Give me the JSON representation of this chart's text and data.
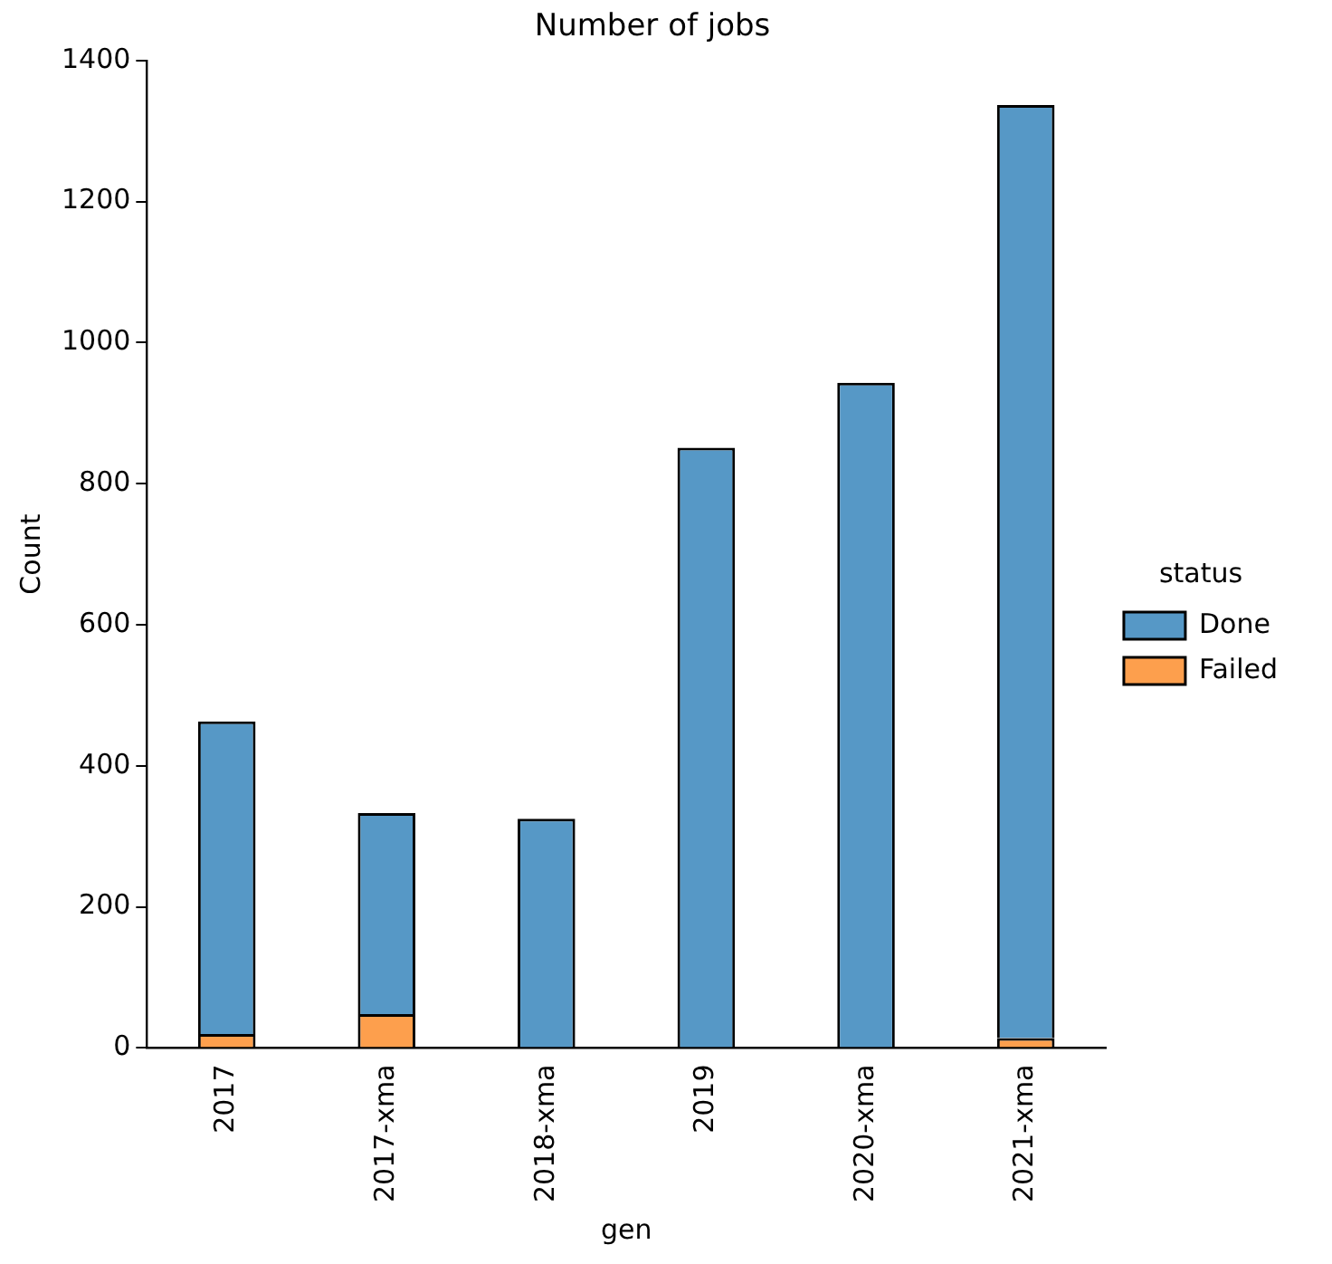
{
  "chart_data": {
    "type": "bar",
    "title": "Number of jobs",
    "xlabel": "gen",
    "ylabel": "Count",
    "legend_title": "status",
    "categories": [
      "2017",
      "2017-xma",
      "2018-xma",
      "2019",
      "2020-xma",
      "2021-xma"
    ],
    "series": [
      {
        "name": "Failed",
        "color": "#fd9f4d",
        "values": [
          20,
          48,
          0,
          0,
          0,
          14
        ]
      },
      {
        "name": "Done",
        "color": "#5698c6",
        "values": [
          443,
          285,
          325,
          851,
          943,
          1323
        ]
      }
    ],
    "stacked": true,
    "ylim": [
      0,
      1400
    ],
    "yticks": [
      0,
      200,
      400,
      600,
      800,
      1000,
      1200,
      1400
    ],
    "grid": false,
    "legend": "right"
  }
}
